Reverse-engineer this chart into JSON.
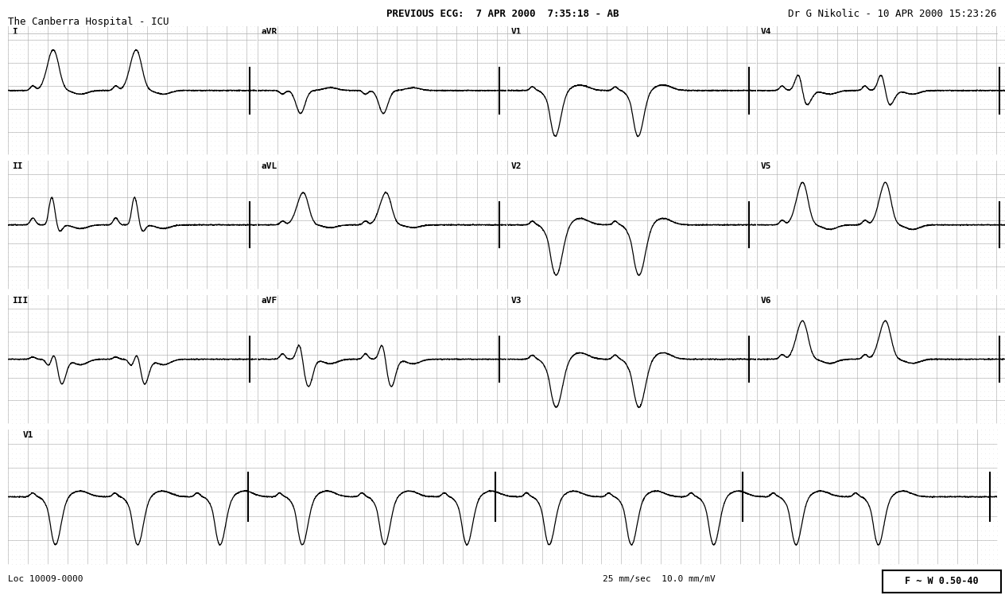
{
  "title_center": "PREVIOUS ECG:  7 APR 2000  7:35:18 - AB",
  "subtitle_left": "The Canberra Hospital - ICU",
  "title_right": "Dr G Nikolic - 10 APR 2000 15:23:26",
  "footer_left": "Loc 10009-0000",
  "footer_center": "25 mm/sec  10.0 mm/mV",
  "footer_right": "F ~ W 0.50-40",
  "bg_color": "#ffffff",
  "grid_dot_color": "#bbbbbb",
  "grid_major_color": "#aaaaaa",
  "ecg_color": "#000000",
  "text_color": "#000000",
  "heart_rate": 72,
  "sample_rate": 500,
  "mm_per_sec": 25,
  "mm_per_mv": 10
}
